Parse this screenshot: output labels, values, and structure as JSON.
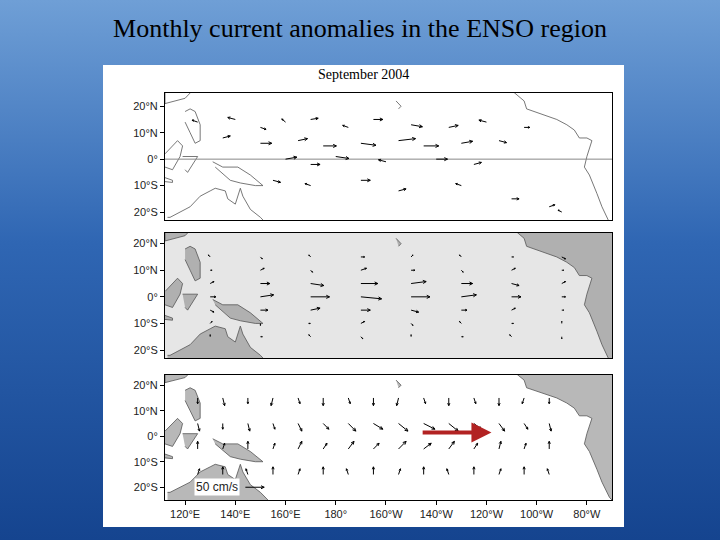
{
  "title": "Monthly current anomalies in the ENSO region",
  "subtitle": "September 2004",
  "land": [
    {
      "lon": [
        112,
        112,
        116,
        120,
        122,
        122
      ],
      "lat": [
        25,
        21,
        22,
        23,
        25,
        25
      ]
    },
    {
      "lon": [
        120,
        122,
        124,
        126,
        126,
        124,
        122,
        120
      ],
      "lat": [
        18,
        19,
        18,
        13,
        7,
        6,
        10,
        14
      ]
    },
    {
      "lon": [
        112,
        117,
        119,
        118,
        115,
        112
      ],
      "lat": [
        2,
        7,
        5,
        1,
        -4,
        -3
      ]
    },
    {
      "lon": [
        119,
        122,
        125,
        121,
        120
      ],
      "lat": [
        1,
        1,
        1,
        -5,
        -4
      ]
    },
    {
      "lon": [
        112,
        115,
        115,
        112
      ],
      "lat": [
        -7,
        -8,
        -8.8,
        -8.5
      ]
    },
    {
      "lon": [
        131,
        135,
        141,
        146,
        151,
        148,
        142,
        138,
        132
      ],
      "lat": [
        -1,
        -3,
        -3,
        -6,
        -10,
        -10,
        -9,
        -8,
        -3
      ]
    },
    {
      "lon": [
        113,
        114,
        122,
        126,
        130,
        132,
        136,
        137,
        140,
        142,
        143,
        146,
        150,
        153,
        153,
        113
      ],
      "lat": [
        -22,
        -22,
        -18,
        -14,
        -12,
        -11,
        -12,
        -15,
        -17,
        -11,
        -14,
        -19,
        -22,
        -25,
        -26,
        -26
      ]
    },
    {
      "lon": [
        204,
        206,
        205
      ],
      "lat": [
        22,
        20,
        19
      ]
    },
    {
      "lon": [
        250,
        255,
        256,
        262,
        265,
        268,
        272,
        275,
        277,
        280,
        282,
        280,
        279,
        281,
        284,
        286,
        289,
        291,
        291
      ],
      "lat": [
        26,
        22,
        19,
        17,
        16,
        15,
        13,
        11,
        8,
        8,
        7,
        1,
        -3,
        -6,
        -13,
        -18,
        -24,
        -26,
        26
      ]
    }
  ],
  "chart_data": [
    {
      "type": "vector_map",
      "xlim": [
        112,
        290
      ],
      "ylim": [
        -23,
        25
      ],
      "yticks": [
        {
          "value": 20,
          "label": "20°N"
        },
        {
          "value": 10,
          "label": "10°N"
        },
        {
          "value": 0,
          "label": "0°"
        },
        {
          "value": -10,
          "label": "10°S"
        },
        {
          "value": -20,
          "label": "20°S"
        }
      ],
      "tick_labels": "y",
      "series": [
        {
          "type": "land",
          "color": "#ffffff"
        },
        {
          "type": "line",
          "color": "#888888",
          "lon": [
            112,
            290
          ],
          "lat": [
            0,
            0
          ]
        },
        {
          "type": "vectors",
          "color": "#000000",
          "lon": [
            140,
            150,
            160,
            170,
            185,
            195,
            210,
            225,
            240,
            255,
            150,
            165,
            175,
            190,
            205,
            215,
            230,
            245,
            160,
            170,
            180,
            200,
            220,
            235,
            155,
            170,
            190,
            205,
            230,
            250,
            265,
            270,
            125,
            135
          ],
          "lat": [
            15,
            12,
            14,
            15,
            12,
            15,
            13,
            12,
            14,
            12,
            6,
            7,
            5,
            6,
            7,
            5,
            6,
            7,
            0,
            -2,
            1,
            -1,
            0,
            -2,
            -8,
            -10,
            -8,
            -12,
            -10,
            -15,
            -18,
            -20,
            14,
            8
          ],
          "u": [
            -20,
            15,
            -10,
            20,
            -15,
            25,
            30,
            25,
            -20,
            15,
            30,
            25,
            35,
            40,
            45,
            40,
            30,
            20,
            30,
            25,
            35,
            -20,
            30,
            20,
            20,
            -15,
            25,
            20,
            -15,
            20,
            15,
            -10,
            -15,
            20
          ],
          "v": [
            5,
            -5,
            8,
            3,
            5,
            0,
            -5,
            5,
            5,
            0,
            0,
            5,
            0,
            -5,
            5,
            0,
            5,
            -5,
            5,
            0,
            -5,
            5,
            0,
            5,
            -5,
            5,
            0,
            5,
            5,
            0,
            5,
            5,
            5,
            5
          ]
        }
      ]
    },
    {
      "type": "vector_map",
      "xlim": [
        112,
        290
      ],
      "ylim": [
        -23,
        24
      ],
      "yticks": [
        {
          "value": 20,
          "label": "20°N"
        },
        {
          "value": 10,
          "label": "10°N"
        },
        {
          "value": 0,
          "label": "0°"
        },
        {
          "value": -10,
          "label": "10°S"
        },
        {
          "value": -20,
          "label": "20°S"
        }
      ],
      "tick_labels": "y",
      "series": [
        {
          "type": "land",
          "color": "#b0b0b0"
        },
        {
          "type": "vectors",
          "color": "#000000",
          "lon": [
            130,
            150,
            170,
            190,
            210,
            230,
            250,
            270,
            130,
            150,
            170,
            190,
            210,
            230,
            250,
            270,
            130,
            150,
            170,
            190,
            210,
            230,
            250,
            270,
            130,
            150,
            170,
            190,
            210,
            230,
            250,
            270,
            130,
            150,
            170,
            190,
            210,
            230,
            250,
            270,
            130,
            150,
            170,
            190,
            210,
            230,
            250,
            270,
            130,
            150,
            170,
            190,
            210,
            230,
            250,
            270
          ],
          "lat": [
            15,
            15,
            15,
            15,
            15,
            15,
            15,
            15,
            10,
            10,
            10,
            10,
            10,
            10,
            10,
            10,
            5,
            5,
            5,
            5,
            5,
            5,
            5,
            5,
            0,
            0,
            0,
            0,
            0,
            0,
            0,
            0,
            -5,
            -5,
            -5,
            -5,
            -5,
            -5,
            -5,
            -5,
            -10,
            -10,
            -10,
            -10,
            -10,
            -10,
            -10,
            -10,
            -15,
            -15,
            -15,
            -15,
            -15,
            -15,
            -15,
            -15
          ],
          "u": [
            -5,
            5,
            -5,
            10,
            5,
            -5,
            5,
            10,
            5,
            10,
            5,
            15,
            10,
            5,
            10,
            5,
            10,
            25,
            35,
            45,
            40,
            30,
            20,
            10,
            15,
            35,
            50,
            55,
            50,
            40,
            25,
            10,
            10,
            20,
            25,
            25,
            20,
            15,
            10,
            5,
            5,
            0,
            -5,
            10,
            5,
            -5,
            5,
            0,
            0,
            5,
            -5,
            5,
            0,
            5,
            -5,
            0
          ],
          "v": [
            5,
            -5,
            5,
            0,
            5,
            5,
            0,
            -5,
            0,
            5,
            -5,
            5,
            0,
            -5,
            5,
            0,
            5,
            0,
            -5,
            0,
            5,
            0,
            -5,
            5,
            0,
            5,
            0,
            -5,
            0,
            5,
            0,
            0,
            -5,
            0,
            5,
            0,
            -5,
            0,
            5,
            0,
            5,
            -5,
            0,
            5,
            -5,
            5,
            0,
            5,
            5,
            0,
            5,
            -5,
            5,
            0,
            5,
            -5
          ]
        }
      ]
    },
    {
      "type": "vector_map",
      "xlim": [
        112,
        290
      ],
      "ylim": [
        -25,
        24
      ],
      "xticks": [
        {
          "value": 120,
          "label": "120°E"
        },
        {
          "value": 140,
          "label": "140°E"
        },
        {
          "value": 160,
          "label": "160°E"
        },
        {
          "value": 180,
          "label": "180°"
        },
        {
          "value": 200,
          "label": "160°W"
        },
        {
          "value": 220,
          "label": "140°W"
        },
        {
          "value": 240,
          "label": "120°W"
        },
        {
          "value": 260,
          "label": "100°W"
        },
        {
          "value": 280,
          "label": "80°W"
        }
      ],
      "yticks": [
        {
          "value": 20,
          "label": "20°N"
        },
        {
          "value": 10,
          "label": "10°N"
        },
        {
          "value": 0,
          "label": "0°"
        },
        {
          "value": -10,
          "label": "10°S"
        },
        {
          "value": -20,
          "label": "20°S"
        }
      ],
      "series": [
        {
          "type": "land",
          "color": "#b8b8b8"
        },
        {
          "type": "vectors",
          "color": "#000000",
          "lon": [
            125,
            135,
            145,
            155,
            165,
            175,
            185,
            195,
            205,
            215,
            225,
            235,
            245,
            255,
            265,
            125,
            135,
            145,
            155,
            165,
            175,
            185,
            195,
            205,
            215,
            225,
            235,
            245,
            255,
            265,
            125,
            135,
            145,
            155,
            165,
            175,
            185,
            195,
            205,
            215,
            225,
            235,
            245,
            255,
            265,
            125,
            135,
            145,
            155,
            165,
            175,
            185,
            195,
            205,
            215,
            225,
            235,
            245,
            255,
            265
          ],
          "lat": [
            15,
            15,
            15,
            15,
            15,
            15,
            15,
            15,
            15,
            15,
            15,
            15,
            15,
            15,
            15,
            5,
            5,
            5,
            5,
            5,
            5,
            5,
            5,
            5,
            5,
            5,
            5,
            5,
            5,
            5,
            -5,
            -5,
            -5,
            -5,
            -5,
            -5,
            -5,
            -5,
            -5,
            -5,
            -5,
            -5,
            -5,
            -5,
            -5,
            -15,
            -15,
            -15,
            -15,
            -15,
            -15,
            -15,
            -15,
            -15,
            -15,
            -15,
            -15,
            -15,
            -15,
            -15
          ],
          "u": [
            0,
            5,
            0,
            -5,
            5,
            0,
            5,
            0,
            -5,
            5,
            0,
            5,
            0,
            -5,
            0,
            5,
            0,
            5,
            5,
            10,
            15,
            20,
            25,
            25,
            30,
            25,
            20,
            15,
            10,
            5,
            0,
            5,
            0,
            5,
            10,
            10,
            15,
            15,
            20,
            20,
            15,
            10,
            5,
            5,
            0,
            5,
            0,
            -5,
            0,
            5,
            0,
            -5,
            0,
            5,
            0,
            -5,
            0,
            5,
            0,
            -5
          ],
          "v": [
            -15,
            -20,
            -15,
            -20,
            -15,
            -20,
            -15,
            -20,
            -20,
            -15,
            -20,
            -15,
            -20,
            -15,
            -15,
            -20,
            -15,
            -20,
            -15,
            -20,
            -15,
            -20,
            -15,
            -20,
            -15,
            -20,
            -15,
            -20,
            -15,
            -20,
            20,
            15,
            20,
            15,
            20,
            15,
            20,
            15,
            20,
            15,
            20,
            15,
            20,
            15,
            20,
            15,
            20,
            15,
            20,
            15,
            20,
            15,
            20,
            15,
            20,
            15,
            20,
            15,
            20,
            15
          ]
        }
      ],
      "scale_arrow": {
        "label": "50 cm/s",
        "value": 50,
        "lon": 144,
        "lat": -20
      },
      "highlight": {
        "from": [
          214,
          1.5
        ],
        "to": [
          242,
          1.5
        ],
        "color": "#b22222"
      }
    }
  ]
}
